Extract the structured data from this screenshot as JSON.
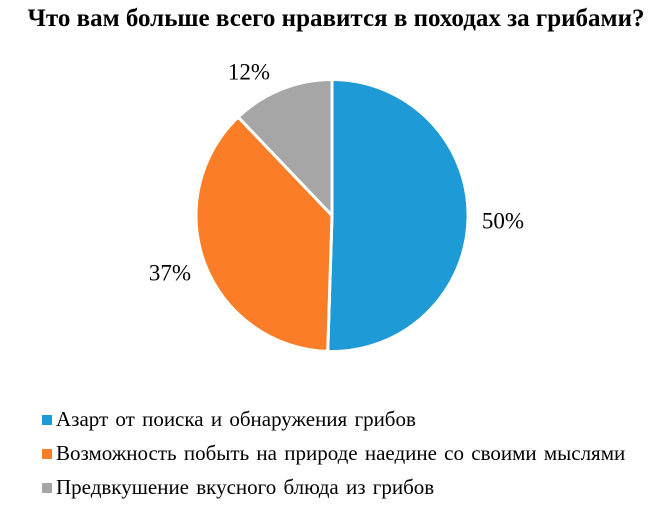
{
  "chart_data": {
    "type": "pie",
    "title": "Что вам больше всего нравится в походах за грибами?",
    "categories": [
      "Азарт от поиска и обнаружения грибов",
      "Возможность побыть на природе наедине со своими мыслями",
      "Предвкушение вкусного блюда из грибов"
    ],
    "values": [
      50,
      37,
      12
    ],
    "pct_labels": [
      "50%",
      "37%",
      "12%"
    ],
    "colors": [
      "#1E9AD6",
      "#FB7D27",
      "#A6A6A6"
    ],
    "slice_separator_color": "#ffffff",
    "start_angle_deg": 0,
    "direction": "clockwise",
    "legend_position": "bottom-left",
    "labels_position": "outside"
  }
}
